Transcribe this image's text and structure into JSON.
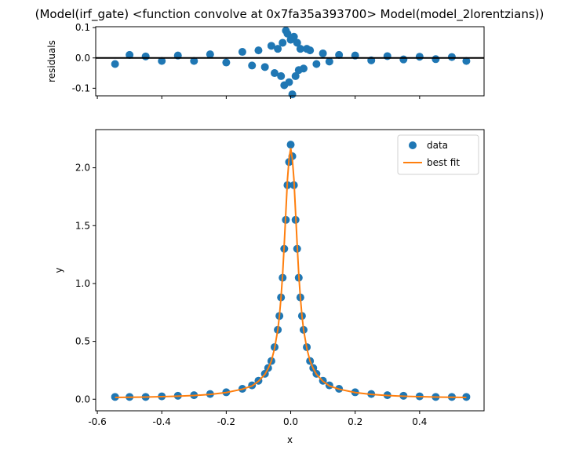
{
  "figure": {
    "title": "(Model(irf_gate) <function convolve at 0x7fa35a393700> Model(model_2lorentzians))"
  },
  "chart_data": [
    {
      "type": "scatter",
      "panel": "residuals",
      "ylabel": "residuals",
      "xlabel": "",
      "xlim": [
        -0.605,
        0.6
      ],
      "ylim": [
        -0.125,
        0.103
      ],
      "yticks": [
        0.1,
        0.0,
        -0.1
      ],
      "ytick_labels": [
        "0.1",
        "0.0",
        "-0.1"
      ],
      "xticks": [
        -0.6,
        -0.4,
        -0.2,
        0.0,
        0.2,
        0.4
      ],
      "xtick_labels_visible": false,
      "reference_line_y": 0.0,
      "grid": false,
      "colors": {
        "points": "#1f77b4",
        "zero_line": "#000000"
      },
      "series": [
        {
          "x": [
            -0.545,
            -0.5,
            -0.45,
            -0.4,
            -0.35,
            -0.3,
            -0.25,
            -0.2,
            -0.15,
            -0.12,
            -0.1,
            -0.08,
            -0.06,
            -0.05,
            -0.04,
            -0.03,
            -0.025,
            -0.02,
            -0.015,
            -0.01,
            -0.005,
            0.0,
            0.005,
            0.01,
            0.015,
            0.02,
            0.025,
            0.03,
            0.04,
            0.05,
            0.06,
            0.08,
            0.1,
            0.12,
            0.15,
            0.2,
            0.25,
            0.3,
            0.35,
            0.4,
            0.45,
            0.5,
            0.545
          ],
          "y": [
            -0.02,
            0.01,
            0.005,
            -0.01,
            0.008,
            -0.01,
            0.012,
            -0.015,
            0.02,
            -0.025,
            0.025,
            -0.03,
            0.04,
            -0.05,
            0.03,
            -0.06,
            0.05,
            -0.09,
            0.09,
            0.08,
            -0.08,
            0.06,
            -0.12,
            0.07,
            -0.06,
            0.05,
            -0.04,
            0.03,
            -0.035,
            0.03,
            0.025,
            -0.02,
            0.015,
            -0.012,
            0.01,
            0.008,
            -0.008,
            0.006,
            -0.005,
            0.004,
            -0.004,
            0.003,
            -0.01
          ]
        }
      ]
    },
    {
      "type": "line",
      "panel": "fit",
      "xlabel": "x",
      "ylabel": "y",
      "xlim": [
        -0.605,
        0.6
      ],
      "ylim": [
        -0.1,
        2.33
      ],
      "xticks": [
        -0.6,
        -0.4,
        -0.2,
        0.0,
        0.2,
        0.4
      ],
      "xtick_labels": [
        "-0.6",
        "-0.4",
        "-0.2",
        "0.0",
        "0.2",
        "0.4"
      ],
      "yticks": [
        0.0,
        0.5,
        1.0,
        1.5,
        2.0
      ],
      "ytick_labels": [
        "0.0",
        "0.5",
        "1.0",
        "1.5",
        "2.0"
      ],
      "grid": false,
      "legend": {
        "position": "top-right",
        "entries": [
          "data",
          "best fit"
        ]
      },
      "colors": {
        "data": "#1f77b4",
        "best_fit": "#ff7f0e"
      },
      "series": [
        {
          "name": "data",
          "style": "markers",
          "x": [
            -0.545,
            -0.5,
            -0.45,
            -0.4,
            -0.35,
            -0.3,
            -0.25,
            -0.2,
            -0.15,
            -0.12,
            -0.1,
            -0.08,
            -0.07,
            -0.06,
            -0.05,
            -0.04,
            -0.035,
            -0.03,
            -0.025,
            -0.02,
            -0.015,
            -0.01,
            -0.005,
            0.0,
            0.005,
            0.01,
            0.015,
            0.02,
            0.025,
            0.03,
            0.035,
            0.04,
            0.05,
            0.06,
            0.07,
            0.08,
            0.1,
            0.12,
            0.15,
            0.2,
            0.25,
            0.3,
            0.35,
            0.4,
            0.45,
            0.5,
            0.545
          ],
          "y": [
            0.02,
            0.02,
            0.02,
            0.025,
            0.03,
            0.035,
            0.045,
            0.06,
            0.09,
            0.12,
            0.16,
            0.22,
            0.27,
            0.33,
            0.45,
            0.6,
            0.72,
            0.88,
            1.05,
            1.3,
            1.55,
            1.85,
            2.05,
            2.2,
            2.1,
            1.85,
            1.55,
            1.3,
            1.05,
            0.88,
            0.72,
            0.6,
            0.45,
            0.33,
            0.27,
            0.22,
            0.16,
            0.12,
            0.09,
            0.06,
            0.045,
            0.035,
            0.03,
            0.025,
            0.02,
            0.02,
            0.02
          ]
        },
        {
          "name": "best fit",
          "style": "line",
          "x": [
            -0.545,
            -0.5,
            -0.45,
            -0.4,
            -0.35,
            -0.3,
            -0.25,
            -0.2,
            -0.15,
            -0.12,
            -0.1,
            -0.08,
            -0.07,
            -0.06,
            -0.05,
            -0.04,
            -0.035,
            -0.03,
            -0.025,
            -0.02,
            -0.015,
            -0.01,
            -0.005,
            0.0,
            0.005,
            0.01,
            0.015,
            0.02,
            0.025,
            0.03,
            0.035,
            0.04,
            0.05,
            0.06,
            0.07,
            0.08,
            0.1,
            0.12,
            0.15,
            0.2,
            0.25,
            0.3,
            0.35,
            0.4,
            0.45,
            0.5,
            0.545
          ],
          "y": [
            0.015,
            0.017,
            0.019,
            0.022,
            0.026,
            0.032,
            0.042,
            0.058,
            0.087,
            0.115,
            0.155,
            0.215,
            0.265,
            0.33,
            0.44,
            0.6,
            0.72,
            0.88,
            1.08,
            1.34,
            1.62,
            1.9,
            2.08,
            2.17,
            2.08,
            1.9,
            1.62,
            1.34,
            1.08,
            0.88,
            0.72,
            0.6,
            0.44,
            0.33,
            0.265,
            0.215,
            0.155,
            0.115,
            0.087,
            0.058,
            0.042,
            0.032,
            0.026,
            0.022,
            0.019,
            0.017,
            0.015
          ]
        }
      ]
    }
  ]
}
